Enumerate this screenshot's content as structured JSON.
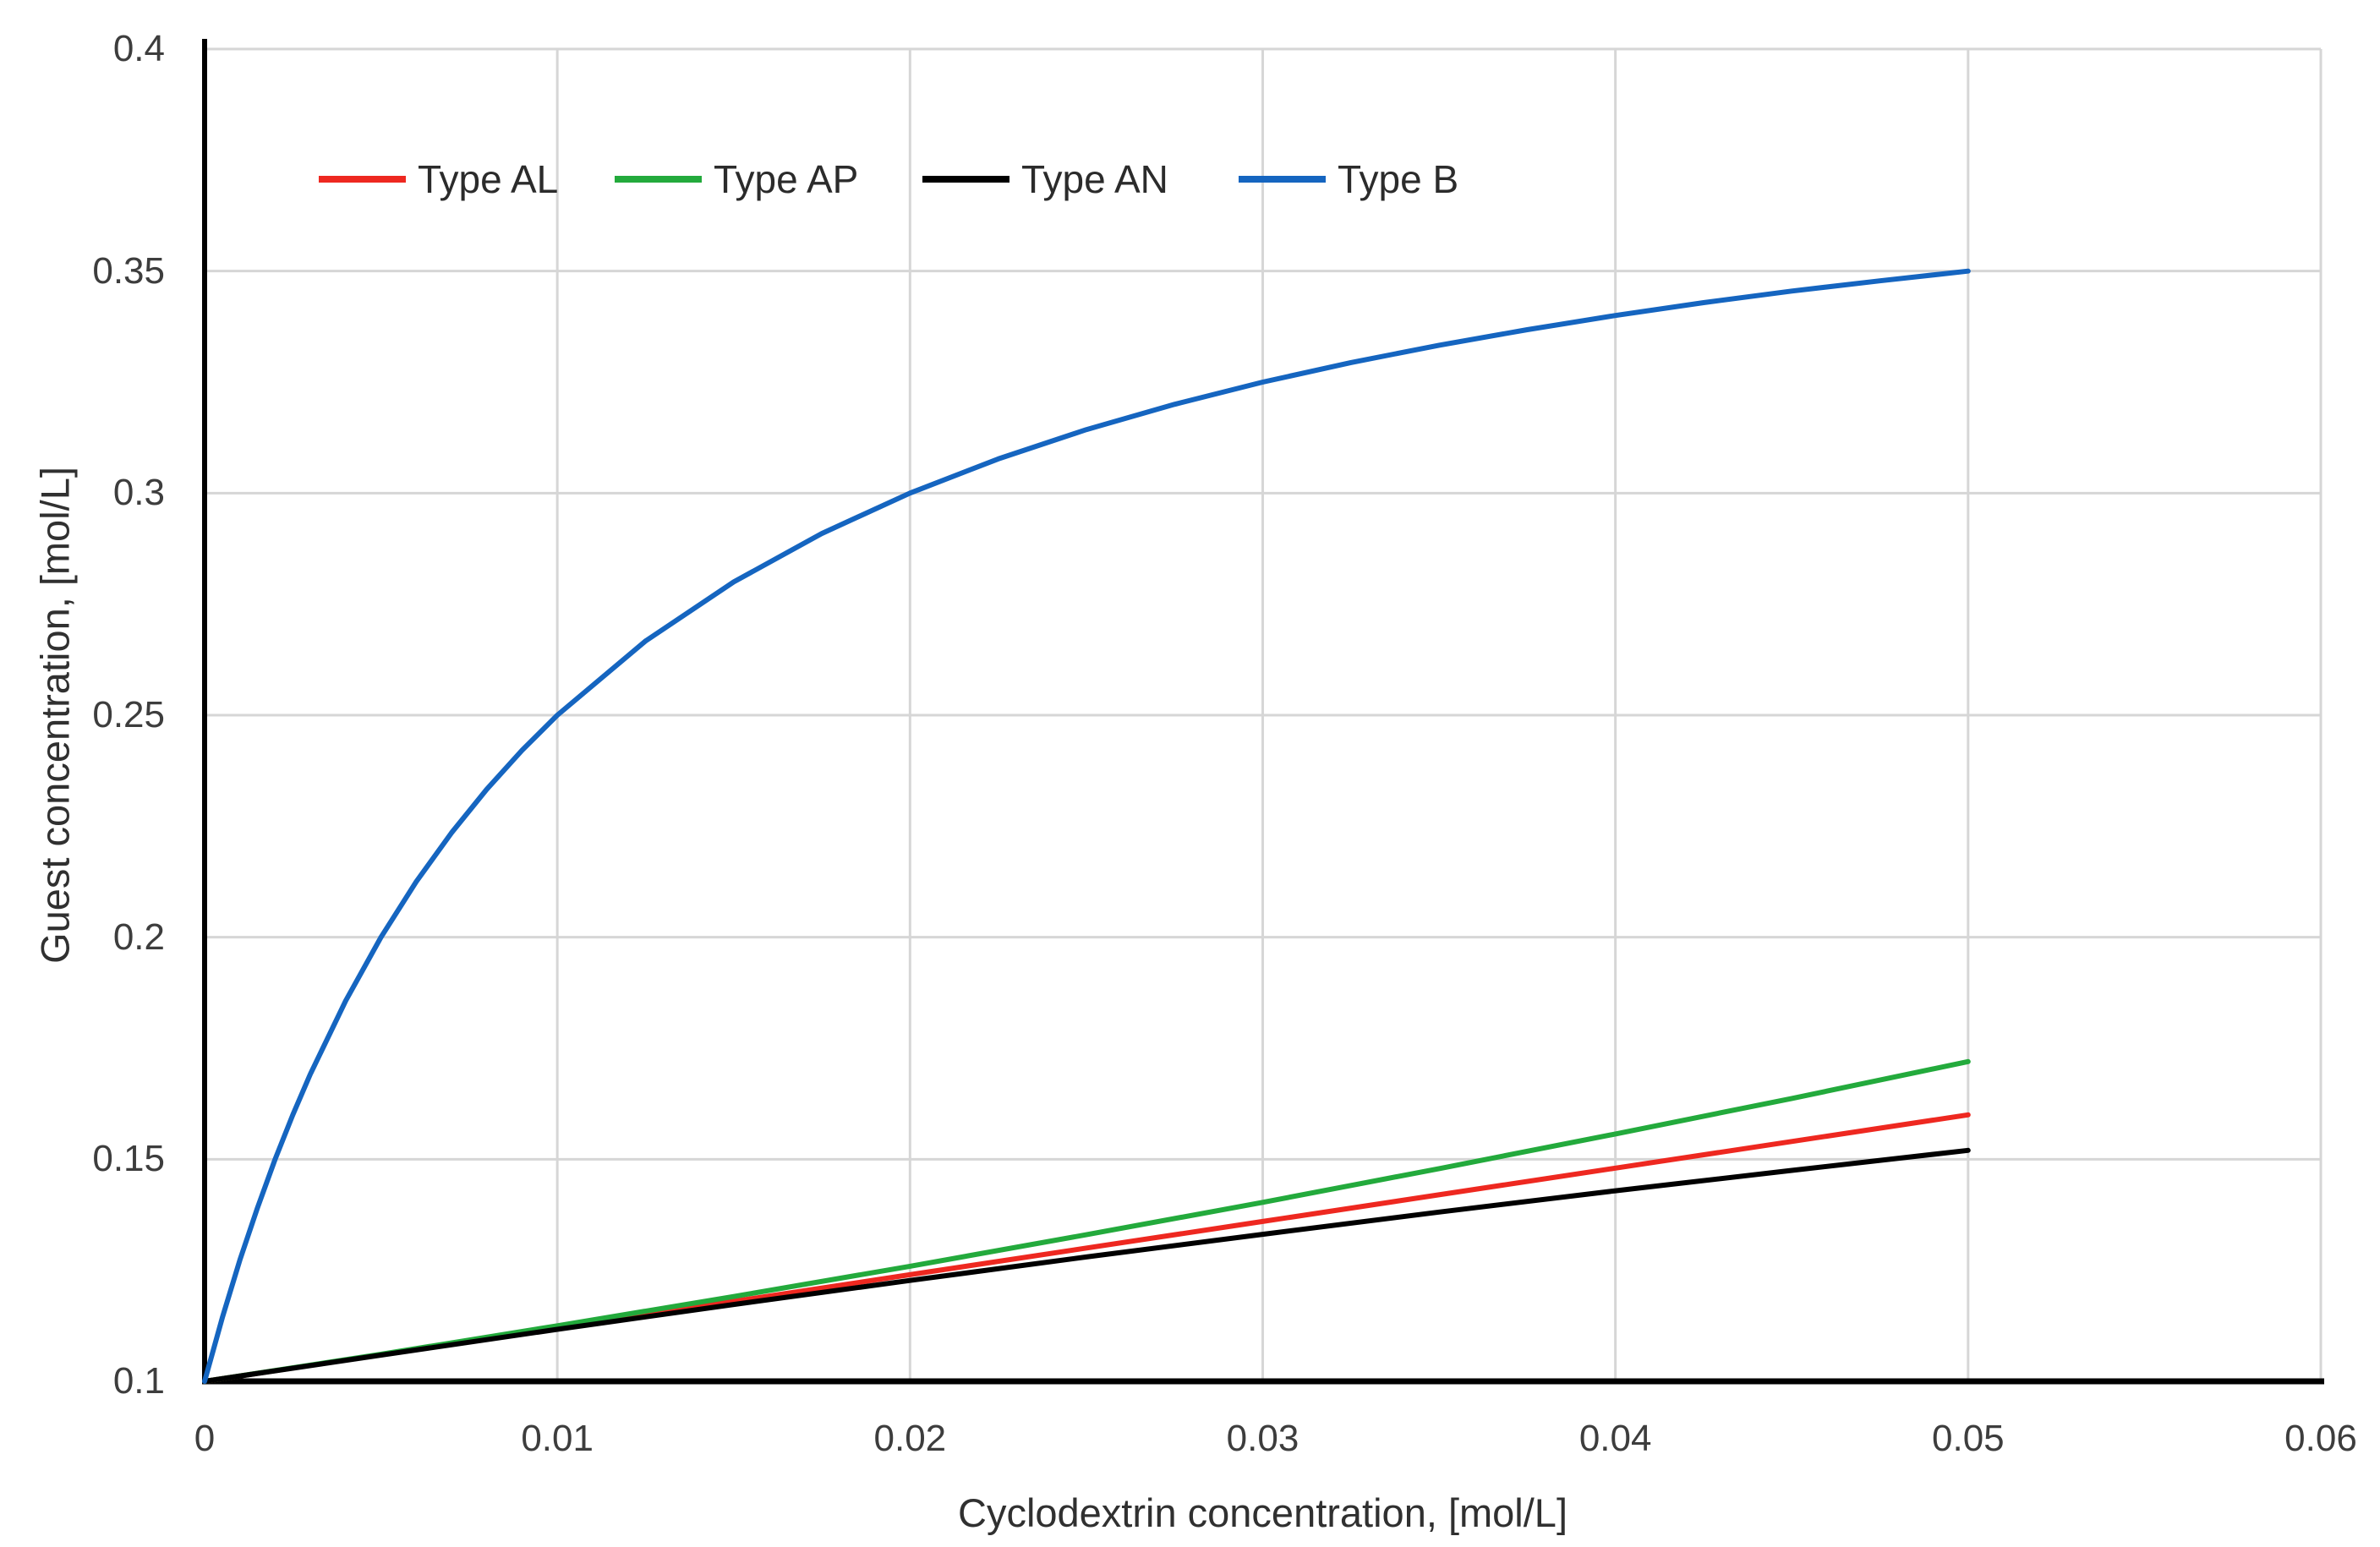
{
  "chart_data": {
    "type": "line",
    "title": "",
    "xlabel": "Cyclodextrin concentration, [mol/L]",
    "ylabel": "Guest concentration, [mol/L]",
    "xlim": [
      0,
      0.06
    ],
    "ylim": [
      0.1,
      0.4
    ],
    "x_ticks": [
      0,
      0.01,
      0.02,
      0.03,
      0.04,
      0.05,
      0.06
    ],
    "x_tick_labels": [
      "0",
      "0.01",
      "0.02",
      "0.03",
      "0.04",
      "0.05",
      "0.06"
    ],
    "y_ticks": [
      0.1,
      0.15,
      0.2,
      0.25,
      0.3,
      0.35,
      0.4
    ],
    "y_tick_labels": [
      "0.1",
      "0.15",
      "0.2",
      "0.25",
      "0.3",
      "0.35",
      "0.4"
    ],
    "grid": true,
    "gridline_color": "#d6d6d6",
    "axis_color": "#000000",
    "legend_position": "top-inside-horizontal",
    "series": [
      {
        "name": "Type AL",
        "color": "#ee2820",
        "shape": "linear",
        "points": [
          [
            0,
            0.1
          ],
          [
            0.01,
            0.112
          ],
          [
            0.02,
            0.124
          ],
          [
            0.03,
            0.136
          ],
          [
            0.04,
            0.148
          ],
          [
            0.05,
            0.16
          ]
        ]
      },
      {
        "name": "Type AP",
        "color": "#23aa3c",
        "shape": "concave-up",
        "points": [
          [
            0,
            0.1
          ],
          [
            0.005,
            0.1061
          ],
          [
            0.01,
            0.1125
          ],
          [
            0.015,
            0.1191
          ],
          [
            0.02,
            0.1259
          ],
          [
            0.025,
            0.133
          ],
          [
            0.03,
            0.1403
          ],
          [
            0.035,
            0.1479
          ],
          [
            0.04,
            0.1557
          ],
          [
            0.045,
            0.1637
          ],
          [
            0.05,
            0.172
          ]
        ]
      },
      {
        "name": "Type AN",
        "color": "#000000",
        "shape": "concave-down",
        "points": [
          [
            0,
            0.1
          ],
          [
            0.005,
            0.1059
          ],
          [
            0.01,
            0.1117
          ],
          [
            0.015,
            0.1173
          ],
          [
            0.02,
            0.1227
          ],
          [
            0.025,
            0.128
          ],
          [
            0.03,
            0.1331
          ],
          [
            0.035,
            0.1381
          ],
          [
            0.04,
            0.1429
          ],
          [
            0.045,
            0.1475
          ],
          [
            0.05,
            0.152
          ]
        ]
      },
      {
        "name": "Type B",
        "color": "#1565c0",
        "shape": "saturating",
        "points": [
          [
            0,
            0.1
          ],
          [
            0.0005,
            0.1143
          ],
          [
            0.001,
            0.1273
          ],
          [
            0.0015,
            0.1391
          ],
          [
            0.002,
            0.15
          ],
          [
            0.0025,
            0.16
          ],
          [
            0.003,
            0.1692
          ],
          [
            0.004,
            0.1857
          ],
          [
            0.005,
            0.2
          ],
          [
            0.006,
            0.2125
          ],
          [
            0.007,
            0.2235
          ],
          [
            0.008,
            0.2333
          ],
          [
            0.009,
            0.2421
          ],
          [
            0.01,
            0.25
          ],
          [
            0.0125,
            0.2667
          ],
          [
            0.015,
            0.28
          ],
          [
            0.0175,
            0.2909
          ],
          [
            0.02,
            0.3
          ],
          [
            0.0225,
            0.3077
          ],
          [
            0.025,
            0.3143
          ],
          [
            0.0275,
            0.32
          ],
          [
            0.03,
            0.325
          ],
          [
            0.0325,
            0.3294
          ],
          [
            0.035,
            0.3333
          ],
          [
            0.0375,
            0.3368
          ],
          [
            0.04,
            0.34
          ],
          [
            0.0425,
            0.3429
          ],
          [
            0.045,
            0.3455
          ],
          [
            0.0475,
            0.3478
          ],
          [
            0.05,
            0.35
          ]
        ]
      }
    ]
  }
}
